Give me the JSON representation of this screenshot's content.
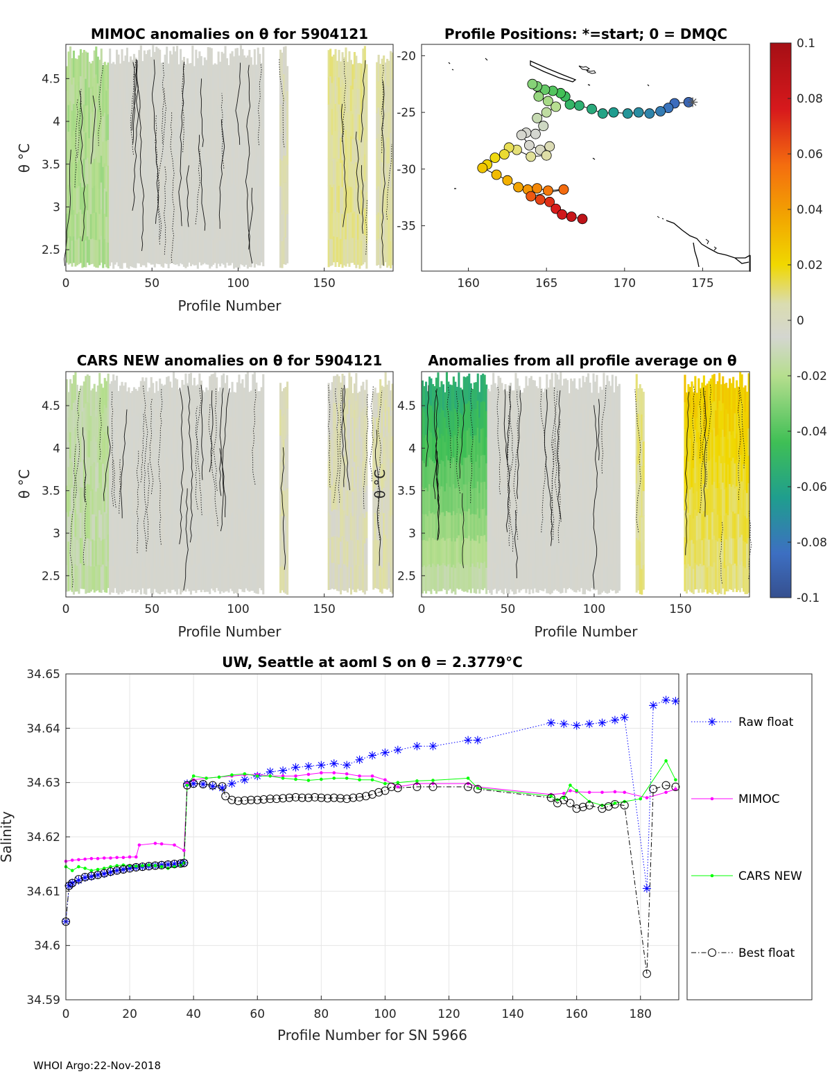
{
  "footer": "WHOI Argo:22-Nov-2018",
  "colorbar": {
    "ticks": [
      "0.1",
      "0.08",
      "0.06",
      "0.04",
      "0.02",
      "0",
      "-0.02",
      "-0.04",
      "-0.06",
      "-0.08",
      "-0.1"
    ],
    "range": [
      -0.1,
      0.1
    ]
  },
  "chart_data": [
    {
      "type": "heatmap",
      "title": "MIMOC anomalies on θ  for 5904121",
      "xlabel": "Profile Number",
      "ylabel": "θ °C",
      "xlim": [
        0,
        190
      ],
      "ylim": [
        2.25,
        4.9
      ],
      "xticks": [
        "0",
        "50",
        "100",
        "150"
      ],
      "yticks": [
        "2.5",
        "3",
        "3.5",
        "4",
        "4.5"
      ],
      "segments": [
        {
          "x": [
            0,
            25
          ],
          "value": -0.02
        },
        {
          "x": [
            25,
            115
          ],
          "value": 0.0
        },
        {
          "x": [
            124,
            129
          ],
          "value": 0.01
        },
        {
          "x": [
            152,
            175
          ],
          "value": 0.018
        },
        {
          "x": [
            180,
            190
          ],
          "value": 0.015
        }
      ]
    },
    {
      "type": "scatter",
      "title": "Profile Positions: *=start; 0 = DMQC",
      "xlabel": "",
      "ylabel": "",
      "xlim": [
        157,
        178
      ],
      "ylim": [
        -39,
        -19
      ],
      "xticks": [
        "160",
        "165",
        "170",
        "175"
      ],
      "yticks": [
        "-20",
        "-25",
        "-30",
        "-35"
      ],
      "start_marker": [
        174.1,
        -24.1
      ],
      "points": [
        [
          174.1,
          -24.1
        ],
        [
          173.2,
          -24.2
        ],
        [
          172.8,
          -24.6
        ],
        [
          172.3,
          -24.9
        ],
        [
          171.6,
          -25.1
        ],
        [
          170.9,
          -25.0
        ],
        [
          170.2,
          -25.1
        ],
        [
          169.3,
          -25.0
        ],
        [
          168.6,
          -25.1
        ],
        [
          167.9,
          -24.7
        ],
        [
          167.1,
          -24.4
        ],
        [
          166.5,
          -24.3
        ],
        [
          166.2,
          -23.6
        ],
        [
          165.9,
          -23.3
        ],
        [
          165.4,
          -23.1
        ],
        [
          164.9,
          -23.0
        ],
        [
          164.4,
          -22.7
        ],
        [
          164.1,
          -22.5
        ],
        [
          164.5,
          -23.6
        ],
        [
          165.1,
          -24.0
        ],
        [
          165.6,
          -24.5
        ],
        [
          165.0,
          -25.0
        ],
        [
          164.4,
          -25.5
        ],
        [
          164.8,
          -26.2
        ],
        [
          164.3,
          -26.9
        ],
        [
          163.7,
          -26.8
        ],
        [
          163.4,
          -27.0
        ],
        [
          163.9,
          -27.9
        ],
        [
          164.6,
          -28.3
        ],
        [
          165.2,
          -28.0
        ],
        [
          165.0,
          -28.8
        ],
        [
          164.0,
          -28.9
        ],
        [
          163.1,
          -28.3
        ],
        [
          162.6,
          -28.1
        ],
        [
          162.3,
          -28.7
        ],
        [
          161.7,
          -29.0
        ],
        [
          161.2,
          -29.6
        ],
        [
          160.9,
          -29.9
        ],
        [
          161.8,
          -30.5
        ],
        [
          162.5,
          -31.0
        ],
        [
          163.2,
          -31.6
        ],
        [
          163.8,
          -31.8
        ],
        [
          164.4,
          -31.7
        ],
        [
          165.1,
          -31.9
        ],
        [
          166.1,
          -31.8
        ],
        [
          164.0,
          -32.4
        ],
        [
          164.6,
          -32.7
        ],
        [
          165.2,
          -32.9
        ],
        [
          165.6,
          -33.5
        ],
        [
          166.0,
          -34.0
        ],
        [
          166.6,
          -34.2
        ],
        [
          167.3,
          -34.4
        ]
      ]
    },
    {
      "type": "heatmap",
      "title": "CARS NEW anomalies on θ for 5904121",
      "xlabel": "Profile Number",
      "ylabel": "θ °C",
      "xlim": [
        0,
        190
      ],
      "ylim": [
        2.25,
        4.9
      ],
      "xticks": [
        "0",
        "50",
        "100",
        "150"
      ],
      "yticks": [
        "2.5",
        "3",
        "3.5",
        "4",
        "4.5"
      ],
      "segments": [
        {
          "x": [
            0,
            25
          ],
          "value": -0.015
        },
        {
          "x": [
            25,
            115
          ],
          "value": 0.0
        },
        {
          "x": [
            124,
            129
          ],
          "value": 0.012
        },
        {
          "x": [
            152,
            175
          ],
          "value": 0.01
        },
        {
          "x": [
            178,
            190
          ],
          "value": 0.012
        }
      ]
    },
    {
      "type": "heatmap",
      "title": "Anomalies from all profile average on θ",
      "xlabel": "Profile Number",
      "ylabel": "θ °C",
      "xlim": [
        0,
        190
      ],
      "ylim": [
        2.25,
        4.9
      ],
      "xticks": [
        "0",
        "50",
        "100",
        "150"
      ],
      "yticks": [
        "2.5",
        "3",
        "3.5",
        "4",
        "4.5"
      ],
      "segments": [
        {
          "x": [
            0,
            38
          ],
          "value": -0.06
        },
        {
          "x": [
            38,
            115
          ],
          "value": 0.0
        },
        {
          "x": [
            124,
            129
          ],
          "value": 0.02
        },
        {
          "x": [
            152,
            190
          ],
          "value": 0.04
        }
      ]
    },
    {
      "type": "line",
      "title": "UW, Seattle at aoml S on θ = 2.3779°C",
      "xlabel": "Profile Number for SN 5966",
      "ylabel": "Salinity",
      "xlim": [
        0,
        192
      ],
      "ylim": [
        34.59,
        34.65
      ],
      "xticks": [
        "0",
        "20",
        "40",
        "60",
        "80",
        "100",
        "120",
        "140",
        "160",
        "180"
      ],
      "yticks": [
        "34.59",
        "34.6",
        "34.61",
        "34.62",
        "34.63",
        "34.64",
        "34.65"
      ],
      "series": [
        {
          "name": "Raw float",
          "color": "#0000ff",
          "x": [
            0,
            1,
            2,
            4,
            6,
            8,
            10,
            12,
            14,
            16,
            18,
            20,
            22,
            24,
            26,
            28,
            30,
            32,
            34,
            36,
            37,
            38,
            40,
            43,
            46,
            49,
            52,
            56,
            60,
            64,
            68,
            72,
            76,
            80,
            84,
            88,
            92,
            96,
            100,
            104,
            110,
            115,
            126,
            129,
            152,
            156,
            160,
            164,
            168,
            172,
            175,
            182,
            184,
            188,
            191
          ],
          "values": [
            34.6044,
            34.611,
            34.6115,
            34.612,
            34.6125,
            34.6127,
            34.613,
            34.6132,
            34.6135,
            34.6138,
            34.614,
            34.6142,
            34.6144,
            34.6145,
            34.6146,
            34.6147,
            34.6148,
            34.6149,
            34.615,
            34.6151,
            34.6152,
            34.6298,
            34.6298,
            34.6297,
            34.6293,
            34.629,
            34.6298,
            34.6305,
            34.6312,
            34.632,
            34.6322,
            34.6328,
            34.633,
            34.6332,
            34.6335,
            34.6332,
            34.6342,
            34.635,
            34.6355,
            34.636,
            34.6367,
            34.6367,
            34.6378,
            34.6378,
            34.641,
            34.6408,
            34.6405,
            34.6408,
            34.641,
            34.6415,
            34.642,
            34.6105,
            34.6442,
            34.6452,
            34.645
          ]
        },
        {
          "name": "MIMOC",
          "color": "#ff00ff",
          "x": [
            0,
            2,
            4,
            6,
            8,
            10,
            12,
            14,
            16,
            18,
            20,
            22,
            23,
            28,
            30,
            34,
            37,
            38,
            40,
            44,
            48,
            52,
            56,
            60,
            64,
            68,
            72,
            76,
            80,
            84,
            88,
            92,
            96,
            100,
            104,
            110,
            115,
            126,
            129,
            152,
            156,
            158,
            160,
            164,
            168,
            172,
            175,
            182,
            188,
            191
          ],
          "values": [
            34.6155,
            34.6157,
            34.6158,
            34.6159,
            34.616,
            34.616,
            34.6161,
            34.6161,
            34.6162,
            34.6162,
            34.6163,
            34.6163,
            34.6185,
            34.6188,
            34.6187,
            34.6185,
            34.6175,
            34.6298,
            34.6305,
            34.6308,
            34.631,
            34.6312,
            34.6314,
            34.6315,
            34.6312,
            34.6312,
            34.6312,
            34.6315,
            34.6318,
            34.6318,
            34.6316,
            34.6312,
            34.6312,
            34.6305,
            34.6292,
            34.6298,
            34.6298,
            34.6298,
            34.6292,
            34.6278,
            34.628,
            34.6285,
            34.6283,
            34.6282,
            34.6282,
            34.6283,
            34.6282,
            34.6272,
            34.6282,
            34.6288
          ]
        },
        {
          "name": "CARS NEW",
          "color": "#00ff00",
          "x": [
            0,
            2,
            4,
            6,
            8,
            10,
            12,
            14,
            16,
            18,
            20,
            22,
            24,
            26,
            28,
            30,
            32,
            34,
            36,
            37,
            38,
            40,
            44,
            48,
            52,
            56,
            60,
            64,
            68,
            72,
            76,
            80,
            84,
            88,
            92,
            96,
            100,
            104,
            110,
            115,
            126,
            129,
            152,
            154,
            156,
            158,
            160,
            164,
            168,
            172,
            175,
            180,
            188,
            191
          ],
          "values": [
            34.6145,
            34.6138,
            34.6145,
            34.6142,
            34.6138,
            34.614,
            34.6142,
            34.6145,
            34.6147,
            34.6148,
            34.6147,
            34.6146,
            34.6147,
            34.6148,
            34.6147,
            34.6145,
            34.6142,
            34.6145,
            34.6148,
            34.6152,
            34.6295,
            34.6312,
            34.6308,
            34.631,
            34.6314,
            34.6316,
            34.6312,
            34.6312,
            34.6308,
            34.6306,
            34.6304,
            34.6306,
            34.6308,
            34.6308,
            34.6305,
            34.6305,
            34.6298,
            34.63,
            34.6303,
            34.6304,
            34.6308,
            34.629,
            34.6275,
            34.6268,
            34.6272,
            34.6295,
            34.6285,
            34.6265,
            34.6258,
            34.6262,
            34.6265,
            34.627,
            34.634,
            34.6305
          ]
        },
        {
          "name": "Best float",
          "color": "#000000",
          "x": [
            0,
            1,
            2,
            4,
            6,
            8,
            10,
            12,
            14,
            16,
            18,
            20,
            22,
            24,
            26,
            28,
            30,
            32,
            34,
            36,
            37,
            38,
            40,
            43,
            46,
            49,
            50,
            52,
            54,
            56,
            58,
            60,
            62,
            64,
            66,
            68,
            70,
            72,
            74,
            76,
            78,
            80,
            82,
            84,
            86,
            88,
            90,
            92,
            94,
            96,
            98,
            100,
            102,
            104,
            110,
            115,
            126,
            129,
            152,
            154,
            156,
            158,
            160,
            162,
            164,
            168,
            170,
            172,
            175,
            182,
            184,
            188,
            191
          ],
          "values": [
            34.6044,
            34.611,
            34.6115,
            34.6122,
            34.6126,
            34.6128,
            34.613,
            34.6133,
            34.6136,
            34.6138,
            34.614,
            34.6142,
            34.6144,
            34.6145,
            34.6146,
            34.6147,
            34.6148,
            34.6149,
            34.615,
            34.6151,
            34.6152,
            34.6295,
            34.6298,
            34.6297,
            34.6295,
            34.6293,
            34.6275,
            34.6268,
            34.6266,
            34.6267,
            34.6268,
            34.6268,
            34.6269,
            34.627,
            34.627,
            34.6271,
            34.6272,
            34.6273,
            34.6272,
            34.6272,
            34.6273,
            34.6272,
            34.6271,
            34.6272,
            34.6271,
            34.627,
            34.6272,
            34.6273,
            34.6275,
            34.6278,
            34.6282,
            34.6285,
            34.6292,
            34.629,
            34.6292,
            34.6292,
            34.6292,
            34.6288,
            34.6272,
            34.6262,
            34.6268,
            34.6262,
            34.6252,
            34.6255,
            34.6258,
            34.6252,
            34.6256,
            34.626,
            34.6258,
            34.5948,
            34.6288,
            34.6295,
            34.6292
          ]
        }
      ]
    }
  ]
}
